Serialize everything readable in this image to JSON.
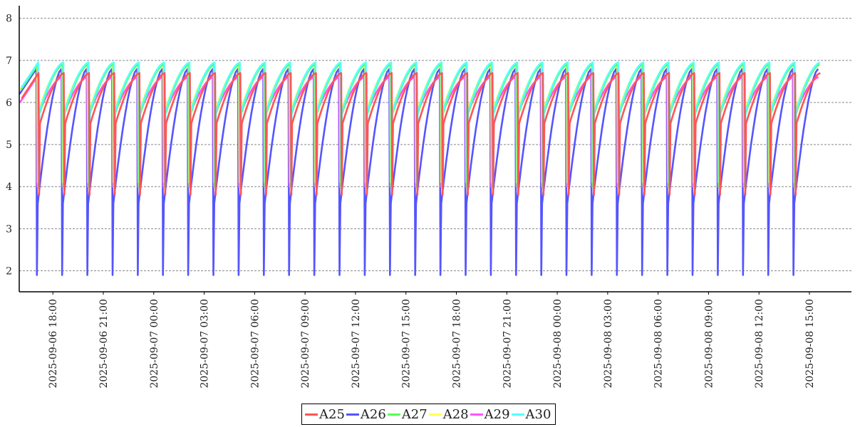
{
  "chart_data": {
    "type": "line",
    "title": "",
    "xlabel": "",
    "ylabel": "",
    "x_range": [
      "2025-09-06 16:00",
      "2025-09-08 17:30"
    ],
    "ylim": [
      1.5,
      8.3
    ],
    "y_ticks": [
      2,
      3,
      4,
      5,
      6,
      7,
      8
    ],
    "x_ticks": [
      "2025-09-06 18:00",
      "2025-09-06 21:00",
      "2025-09-07 00:00",
      "2025-09-07 03:00",
      "2025-09-07 06:00",
      "2025-09-07 09:00",
      "2025-09-07 12:00",
      "2025-09-07 15:00",
      "2025-09-07 18:00",
      "2025-09-07 21:00",
      "2025-09-08 00:00",
      "2025-09-08 03:00",
      "2025-09-08 06:00",
      "2025-09-08 09:00",
      "2025-09-08 12:00",
      "2025-09-08 15:00"
    ],
    "grid": "horizontal-dashed",
    "legend_position": "bottom-center",
    "cycle": {
      "first_peak": "2025-09-06 17:05",
      "period_minutes": 90,
      "count": 31,
      "trough_min": {
        "A25": 3.8,
        "A26": 1.9,
        "A27": 4.0,
        "A28": 4.1,
        "A29": 4.0,
        "A30": 4.1
      },
      "peak_max": {
        "A25": 6.7,
        "A26": 6.8,
        "A27": 6.9,
        "A28": 6.9,
        "A29": 6.6,
        "A30": 6.95
      }
    },
    "series": [
      {
        "name": "A25",
        "color": "#ff5555"
      },
      {
        "name": "A26",
        "color": "#5555ff"
      },
      {
        "name": "A27",
        "color": "#55ff55"
      },
      {
        "name": "A28",
        "color": "#ffff55"
      },
      {
        "name": "A29",
        "color": "#ff55ff"
      },
      {
        "name": "A30",
        "color": "#55ffff"
      }
    ]
  },
  "legend": {
    "items": [
      {
        "label": "A25",
        "color": "#ff5555"
      },
      {
        "label": "A26",
        "color": "#5555ff"
      },
      {
        "label": "A27",
        "color": "#55ff55"
      },
      {
        "label": "A28",
        "color": "#ffff55"
      },
      {
        "label": "A29",
        "color": "#ff55ff"
      },
      {
        "label": "A30",
        "color": "#55ffff"
      }
    ]
  }
}
